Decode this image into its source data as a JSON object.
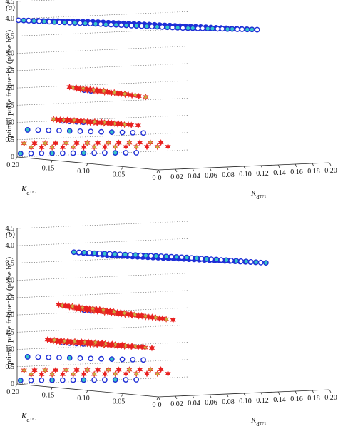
{
  "chart_data": [
    {
      "type": "scatter",
      "panel_label": "(a)",
      "zlabel_main": "optimal pulse frequency (pulse h",
      "zlabel_sup": "−1",
      "zlabel_end": ")",
      "x_label_main": "K",
      "x_label_sub": "d",
      "x_label_subsub": "TF1",
      "y_label_main": "K",
      "y_label_sub": "d",
      "y_label_subsub": "TF2",
      "z_ticks": [
        "0",
        "0.5",
        "1.0",
        "1.5",
        "2.0",
        "2.5",
        "3.0",
        "3.5",
        "4.0",
        "4.5"
      ],
      "x_ticks": [
        "0",
        "0.02",
        "0.04",
        "0.06",
        "0.08",
        "0.10",
        "0.12",
        "0.14",
        "0.16",
        "0.18",
        "0.20"
      ],
      "y_ticks": [
        "0.20",
        "0.15",
        "0.10",
        "0.05",
        "0"
      ],
      "zlim": [
        0,
        4.5
      ],
      "xlim": [
        0,
        0.2
      ],
      "ylim": [
        0,
        0.2
      ],
      "grid": true,
      "layers": [
        {
          "z": 4.1,
          "marker": "blue-circle",
          "dense": true,
          "count": 36
        },
        {
          "z": 2.1,
          "marker": "red-star",
          "count": 13
        },
        {
          "z": 1.15,
          "marker": "red-star",
          "count": 15
        },
        {
          "z": 0.8,
          "marker": "blue-circle",
          "count": 12
        },
        {
          "z": 0.4,
          "marker": "red-star",
          "count": 14
        },
        {
          "z": 0.1,
          "marker": "blue-circle",
          "count": 12
        }
      ]
    },
    {
      "type": "scatter",
      "panel_label": "(b)",
      "zlabel_main": "optimal pulse frequency (pulse h",
      "zlabel_sup": "−1",
      "zlabel_end": ")",
      "x_label_main": "K",
      "x_label_sub": "d",
      "x_label_subsub": "TF1",
      "y_label_main": "K",
      "y_label_sub": "d",
      "y_label_subsub": "TF2",
      "z_ticks": [
        "0",
        "0.5",
        "1.0",
        "1.5",
        "2.0",
        "2.5",
        "3.0",
        "3.5",
        "4.0",
        "4.5"
      ],
      "x_ticks": [
        "0",
        "0.02",
        "0.04",
        "0.06",
        "0.08",
        "0.10",
        "0.12",
        "0.14",
        "0.16",
        "0.18",
        "0.20"
      ],
      "y_ticks": [
        "0.20",
        "0.15",
        "0.10",
        "0.05",
        "0"
      ],
      "zlim": [
        0,
        4.5
      ],
      "xlim": [
        0,
        0.2
      ],
      "ylim": [
        0,
        0.2
      ],
      "grid": true,
      "layers": [
        {
          "z": 3.9,
          "marker": "blue-circle",
          "dense": true,
          "count": 30
        },
        {
          "z": 2.3,
          "marker": "red-star",
          "count": 18
        },
        {
          "z": 1.3,
          "marker": "red-star",
          "count": 16
        },
        {
          "z": 0.8,
          "marker": "blue-circle",
          "count": 12
        },
        {
          "z": 0.4,
          "marker": "red-star",
          "count": 14
        },
        {
          "z": 0.1,
          "marker": "blue-circle",
          "count": 12
        }
      ]
    }
  ],
  "colors": {
    "circle_stroke": "#1f2fd6",
    "circle_fill_inner": "#37c6c8",
    "star_fill": "#e82020",
    "star_fill_inner": "#c8b040"
  }
}
